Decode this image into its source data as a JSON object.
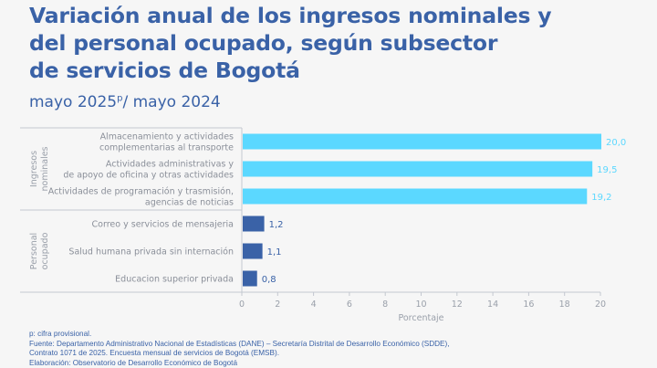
{
  "title": "Variación anual de los ingresos nominales y del personal ocupado, según subsector de servicios de Bogotá",
  "title_lines": [
    "Variación anual de los ingresos nominales y",
    "del personal ocupado, según subsector",
    "de servicios de Bogotá"
  ],
  "subtitle": {
    "before": "mayo 2025",
    "sup": "p",
    "after": "/ mayo 2024"
  },
  "footer": [
    "p: cifra provisional.",
    "Fuente: Departamento Administrativo Nacional de Estadísticas (DANE) – Secretaría Distrital de Desarrollo Económico (SDDE),",
    "Contrato 1071 de 2025. Encuesta mensual de servicios de Bogotá (EMSB).",
    "Elaboración: Observatorio de Desarrollo Económico de Bogotá"
  ],
  "colors": {
    "title": "#3a62a7",
    "ingresos": "#5bd8ff",
    "personal": "#3a62a7",
    "axis": "#c4c8d0",
    "text": "#8a8f99"
  },
  "chart_data": {
    "type": "bar",
    "orientation": "horizontal",
    "xlabel": "Porcentaje",
    "xlim": [
      0,
      20
    ],
    "xticks": [
      0,
      2,
      4,
      6,
      8,
      10,
      12,
      14,
      16,
      18,
      20
    ],
    "groups": [
      {
        "name": "Ingresos nominales",
        "name_lines": [
          "Ingresos",
          "nominales"
        ],
        "color": "#5bd8ff",
        "categories": [
          {
            "label": [
              "Almacenamiento y actividades",
              "complementarias al transporte"
            ],
            "value": 20.0,
            "value_label": "20,0"
          },
          {
            "label": [
              "Actividades administrativas y",
              "de apoyo de oficina y otras actividades"
            ],
            "value": 19.5,
            "value_label": "19,5"
          },
          {
            "label": [
              "Actividades de programación y trasmisión,",
              "agencias de noticias"
            ],
            "value": 19.2,
            "value_label": "19,2"
          }
        ]
      },
      {
        "name": "Personal ocupado",
        "name_lines": [
          "Personal",
          "ocupado"
        ],
        "color": "#3a62a7",
        "categories": [
          {
            "label": [
              "Correo y servicios de mensajeria"
            ],
            "value": 1.2,
            "value_label": "1,2"
          },
          {
            "label": [
              "Salud humana privada sin internación"
            ],
            "value": 1.1,
            "value_label": "1,1"
          },
          {
            "label": [
              "Educacion superior privada"
            ],
            "value": 0.8,
            "value_label": "0,8"
          }
        ]
      }
    ]
  }
}
